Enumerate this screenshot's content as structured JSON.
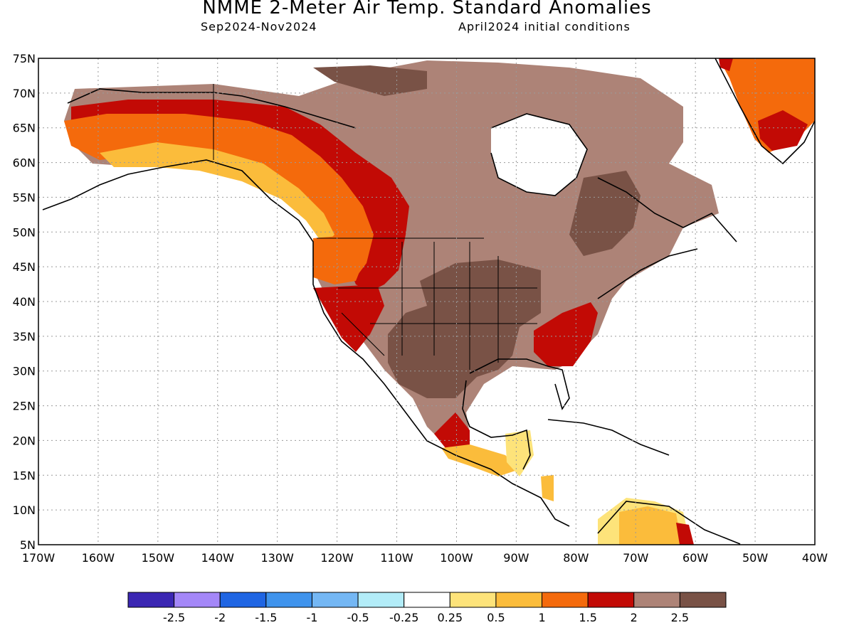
{
  "title": "NMME 2-Meter Air Temp. Standard Anomalies",
  "period": "Sep2024-Nov2024",
  "init": "April2024 initial conditions",
  "lat_labels": [
    "75N",
    "70N",
    "65N",
    "60N",
    "55N",
    "50N",
    "45N",
    "40N",
    "35N",
    "30N",
    "25N",
    "20N",
    "15N",
    "10N",
    "5N"
  ],
  "lon_labels": [
    "170W",
    "160W",
    "150W",
    "140W",
    "130W",
    "120W",
    "110W",
    "100W",
    "90W",
    "80W",
    "70W",
    "60W",
    "50W",
    "40W"
  ],
  "colorbar": {
    "colors": [
      "#3b27b3",
      "#a487f8",
      "#1f65e3",
      "#3f93ec",
      "#74b7f4",
      "#b2ecf8",
      "#ffffff",
      "#fde37a",
      "#fbbc3b",
      "#f46a0c",
      "#c20a05",
      "#ad8377",
      "#795246"
    ],
    "labels": [
      "-2.5",
      "-2",
      "-1.5",
      "-1",
      "-0.5",
      "-0.25",
      "0.25",
      "0.5",
      "1",
      "1.5",
      "2",
      "2.5"
    ]
  },
  "legend_colors": {
    "cool": "#ad8377",
    "dark": "#795246",
    "red": "#c20a05",
    "orange": "#f46a0c",
    "amber": "#fbbc3b",
    "yellow": "#fde37a"
  }
}
